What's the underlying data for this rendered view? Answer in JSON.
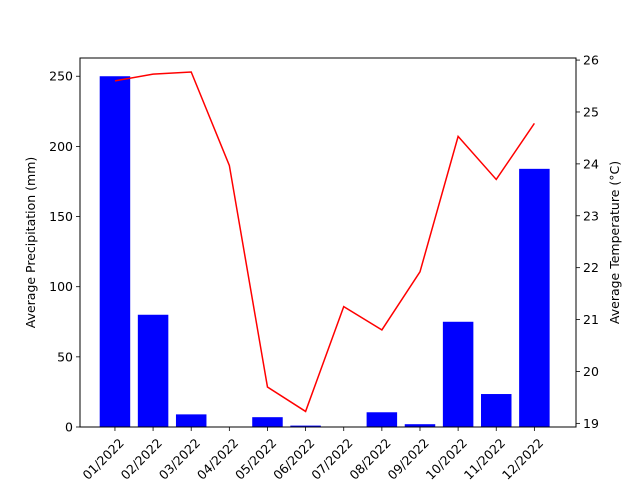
{
  "chart_data": {
    "type": "bar",
    "categories": [
      "01/2022",
      "02/2022",
      "03/2022",
      "04/2022",
      "05/2022",
      "06/2022",
      "07/2022",
      "08/2022",
      "09/2022",
      "10/2022",
      "11/2022",
      "12/2022"
    ],
    "series": [
      {
        "kind": "bar",
        "axis": "left",
        "color": "#0000ff",
        "values": [
          250,
          80,
          9,
          0,
          7,
          1,
          0,
          10.5,
          2,
          75,
          23.5,
          184
        ]
      },
      {
        "kind": "line",
        "axis": "right",
        "color": "#ff0000",
        "values": [
          25.6,
          25.73,
          25.77,
          23.97,
          19.7,
          19.23,
          21.25,
          20.8,
          21.92,
          24.53,
          23.7,
          24.78
        ]
      }
    ],
    "ylabel": "Average Precipitation (mm)",
    "y2label": "Average Temperature (°C)",
    "ylim": [
      0,
      263
    ],
    "y2lim": [
      18.93,
      26.04
    ],
    "yticks": [
      0,
      50,
      100,
      150,
      200,
      250
    ],
    "y2ticks": [
      19,
      20,
      21,
      22,
      23,
      24,
      25,
      26
    ],
    "grid": false,
    "xtick_rotation": 45
  }
}
